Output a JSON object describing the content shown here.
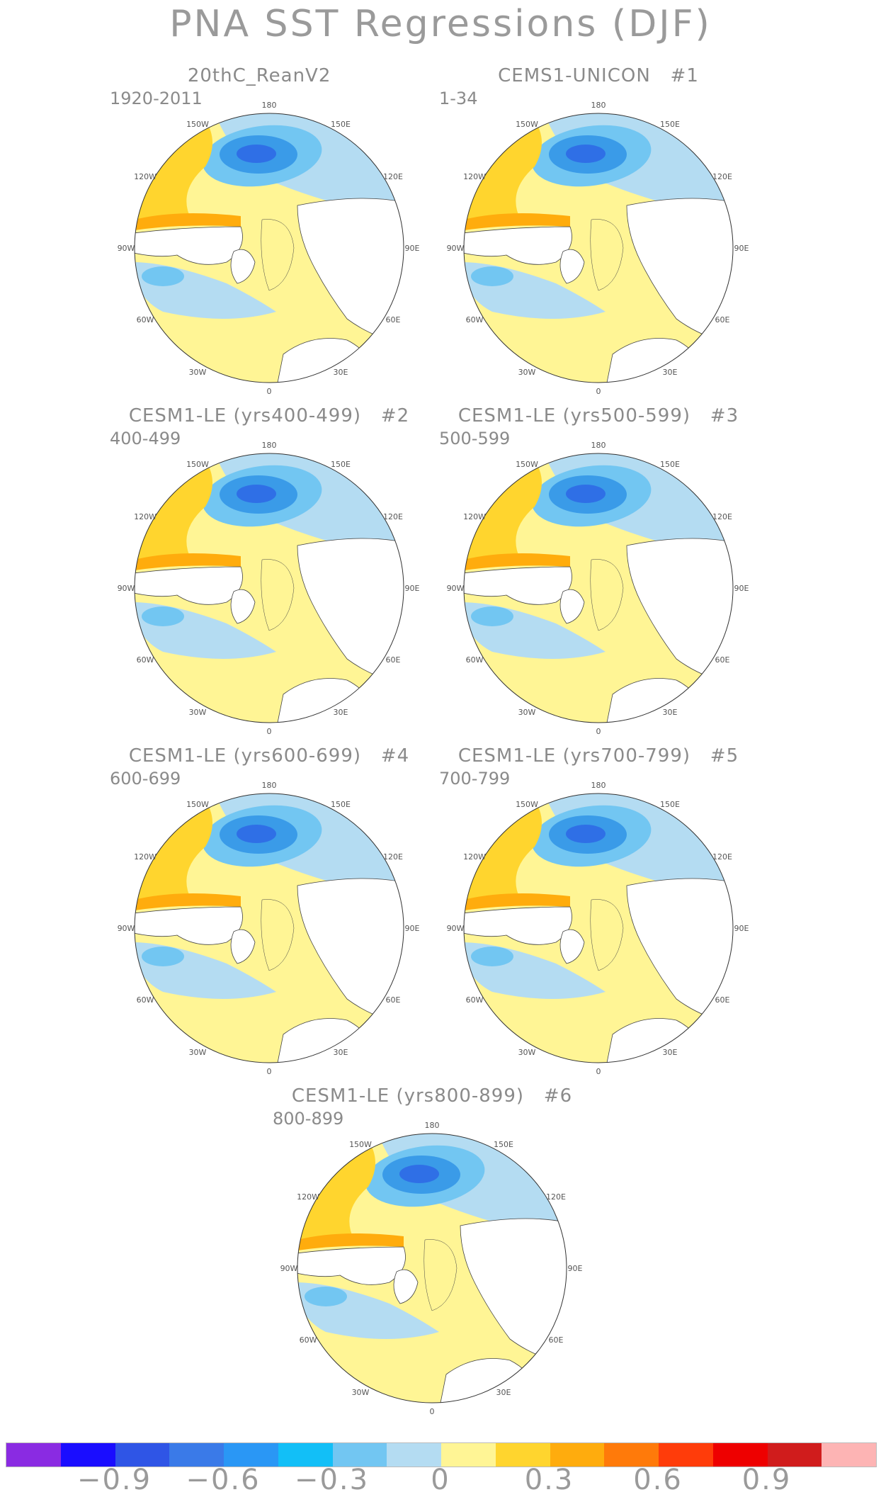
{
  "title": "PNA SST Regressions (DJF)",
  "panels": [
    {
      "title": "20thC_ReanV2",
      "member": "",
      "period": "1920-2011"
    },
    {
      "title": "CEMS1-UNICON",
      "member": "#1",
      "period": "1-34"
    },
    {
      "title": "CESM1-LE (yrs400-499)",
      "member": "#2",
      "period": "400-499"
    },
    {
      "title": "CESM1-LE (yrs500-599)",
      "member": "#3",
      "period": "500-599"
    },
    {
      "title": "CESM1-LE (yrs600-699)",
      "member": "#4",
      "period": "600-699"
    },
    {
      "title": "CESM1-LE (yrs700-799)",
      "member": "#5",
      "period": "700-799"
    },
    {
      "title": "CESM1-LE (yrs800-899)",
      "member": "#6",
      "period": "800-899"
    }
  ],
  "longitude_labels": [
    "180",
    "150E",
    "120E",
    "90E",
    "60E",
    "30E",
    "0",
    "30W",
    "60W",
    "90W",
    "120W",
    "150W"
  ],
  "colorbar": {
    "colors": [
      "#8a2be2",
      "#1a0dff",
      "#2f55e6",
      "#3a7ae8",
      "#2a97f5",
      "#12bff7",
      "#72c6f2",
      "#b4dcf2",
      "#fff595",
      "#ffd52e",
      "#ffac0d",
      "#ff7a0a",
      "#ff3c0a",
      "#ee0000",
      "#d01c1c",
      "#fdb4b4"
    ],
    "tick_labels": [
      "−0.9",
      "−0.6",
      "−0.3",
      "0",
      "0.3",
      "0.6",
      "0.9"
    ]
  }
}
